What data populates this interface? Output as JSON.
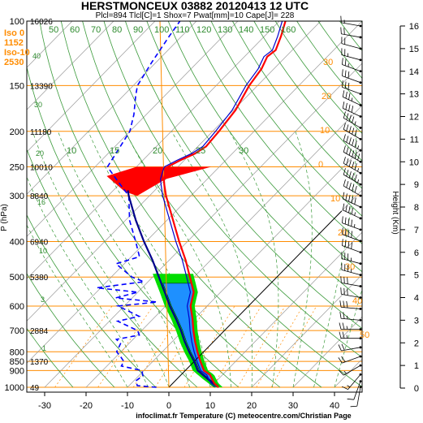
{
  "chart_data": {
    "type": "skew-t log-p sounding",
    "title": "HERSTMONCEUX 03882 20120413 12 UTC",
    "subtitle": "Plcl=894 Tlcl[C]=1 Shox=7 Pwat[mm]=10 Cape[J]= 228",
    "credit": "infoclimat.fr Temperature (C) meteocentre.com/Christian Page",
    "ylabel": "P (hPa)",
    "y2label": "Height (Km)",
    "info_box": [
      {
        "label": "Iso 0",
        "value": "1152"
      },
      {
        "label": "Iso-10",
        "value": "2530"
      }
    ],
    "pressure_ticks": [
      100,
      150,
      200,
      250,
      300,
      400,
      500,
      600,
      700,
      800,
      850,
      900,
      1000
    ],
    "temperature_ticks": [
      -30,
      -20,
      -10,
      0,
      10,
      20,
      30,
      40
    ],
    "height_ticks": [
      0,
      1,
      2,
      3,
      4,
      5,
      6,
      7,
      8,
      9,
      10,
      11,
      12,
      13,
      14,
      15,
      16
    ],
    "geopotential_labels": [
      {
        "p": 100,
        "text": "16026"
      },
      {
        "p": 150,
        "text": "13390"
      },
      {
        "p": 200,
        "text": "11180"
      },
      {
        "p": 250,
        "text": "10010"
      },
      {
        "p": 300,
        "text": "8840"
      },
      {
        "p": 400,
        "text": "6940"
      },
      {
        "p": 500,
        "text": "5380"
      },
      {
        "p": 700,
        "text": "2884"
      },
      {
        "p": 850,
        "text": "1370"
      },
      {
        "p": 1000,
        "text": "49"
      }
    ],
    "mixing_ratio_labels": [
      "40",
      "30",
      "20",
      "16",
      "10",
      "3",
      "1"
    ],
    "theta_w_labels": [
      "10",
      "15",
      "20",
      "25",
      "30"
    ],
    "theta_labels": [
      "50",
      "60",
      "70",
      "80",
      "90",
      "100",
      "110",
      "120",
      "130",
      "140",
      "150",
      "160"
    ],
    "theta_e_labels": [
      "30",
      "20",
      "10",
      "0",
      "10",
      "20",
      "30",
      "40",
      "50"
    ],
    "series": [
      {
        "name": "Temperature",
        "color": "#ff0000",
        "points": [
          [
            1000,
            12
          ],
          [
            975,
            10
          ],
          [
            950,
            8.5
          ],
          [
            925,
            7
          ],
          [
            900,
            4.5
          ],
          [
            850,
            1.5
          ],
          [
            800,
            -1.5
          ],
          [
            750,
            -4.5
          ],
          [
            700,
            -7.5
          ],
          [
            650,
            -10.5
          ],
          [
            600,
            -14
          ],
          [
            550,
            -16.5
          ],
          [
            500,
            -21
          ],
          [
            450,
            -26
          ],
          [
            400,
            -32
          ],
          [
            350,
            -38.5
          ],
          [
            300,
            -46
          ],
          [
            280,
            -49
          ],
          [
            270,
            -50.5
          ],
          [
            260,
            -51.5
          ],
          [
            250,
            -52.5
          ],
          [
            240,
            -51
          ],
          [
            230,
            -49
          ],
          [
            220,
            -48
          ],
          [
            200,
            -48.5
          ],
          [
            175,
            -49.5
          ],
          [
            150,
            -52
          ],
          [
            135,
            -53
          ],
          [
            125,
            -54.5
          ],
          [
            120,
            -54
          ],
          [
            110,
            -56
          ],
          [
            100,
            -58.5
          ]
        ]
      },
      {
        "name": "Parcel",
        "color": "#00008b",
        "points": [
          [
            1000,
            12
          ],
          [
            950,
            7.5
          ],
          [
            900,
            3
          ],
          [
            850,
            0
          ],
          [
            800,
            -3.5
          ],
          [
            750,
            -7
          ],
          [
            700,
            -10.5
          ],
          [
            650,
            -14.5
          ],
          [
            600,
            -19
          ],
          [
            550,
            -23.5
          ],
          [
            500,
            -28.5
          ],
          [
            450,
            -34
          ],
          [
            400,
            -40.5
          ],
          [
            350,
            -47.5
          ],
          [
            300,
            -55
          ],
          [
            290,
            -56.5
          ]
        ]
      },
      {
        "name": "Dew point",
        "color": "#0000ff",
        "points": [
          [
            1000,
            -3
          ],
          [
            990,
            -8
          ],
          [
            960,
            -9.5
          ],
          [
            930,
            -9
          ],
          [
            900,
            -10.5
          ],
          [
            875,
            -16.5
          ],
          [
            850,
            -17
          ],
          [
            830,
            -18.5
          ],
          [
            800,
            -21
          ],
          [
            760,
            -22
          ],
          [
            740,
            -24
          ],
          [
            720,
            -19.5
          ],
          [
            700,
            -21
          ],
          [
            660,
            -28
          ],
          [
            640,
            -24
          ],
          [
            600,
            -31.5
          ],
          [
            585,
            -23
          ],
          [
            570,
            -34
          ],
          [
            550,
            -30
          ],
          [
            535,
            -41
          ],
          [
            515,
            -31
          ],
          [
            500,
            -35
          ],
          [
            460,
            -42
          ],
          [
            440,
            -38
          ],
          [
            400,
            -42.5
          ],
          [
            350,
            -49
          ],
          [
            300,
            -55
          ],
          [
            270,
            -62
          ],
          [
            250,
            -67
          ],
          [
            200,
            -70
          ],
          [
            180,
            -73
          ],
          [
            160,
            -77
          ],
          [
            150,
            -79
          ],
          [
            130,
            -81
          ],
          [
            110,
            -83
          ],
          [
            100,
            -84
          ]
        ]
      }
    ],
    "areas": [
      {
        "name": "CAPE",
        "color": "#1e90ff"
      },
      {
        "name": "CIN",
        "color": "#00dd00"
      },
      {
        "name": "Tropopause",
        "color": "#ff0000"
      }
    ],
    "wind_profile": [
      {
        "h": 0.05,
        "dir": 190,
        "spd": 10
      },
      {
        "h": 0.3,
        "dir": 200,
        "spd": 10
      },
      {
        "h": 0.6,
        "dir": 220,
        "spd": 15
      },
      {
        "h": 1.0,
        "dir": 240,
        "spd": 15
      },
      {
        "h": 1.4,
        "dir": 250,
        "spd": 20
      },
      {
        "h": 1.8,
        "dir": 260,
        "spd": 20
      },
      {
        "h": 2.2,
        "dir": 270,
        "spd": 25
      },
      {
        "h": 2.6,
        "dir": 270,
        "spd": 25
      },
      {
        "h": 3.0,
        "dir": 275,
        "spd": 25
      },
      {
        "h": 3.5,
        "dir": 275,
        "spd": 30
      },
      {
        "h": 4.0,
        "dir": 280,
        "spd": 30
      },
      {
        "h": 4.5,
        "dir": 280,
        "spd": 30
      },
      {
        "h": 5.0,
        "dir": 285,
        "spd": 35
      },
      {
        "h": 5.5,
        "dir": 285,
        "spd": 35
      },
      {
        "h": 6.0,
        "dir": 290,
        "spd": 40
      },
      {
        "h": 6.5,
        "dir": 290,
        "spd": 40
      },
      {
        "h": 7.0,
        "dir": 290,
        "spd": 45
      },
      {
        "h": 7.5,
        "dir": 295,
        "spd": 45
      },
      {
        "h": 8.0,
        "dir": 295,
        "spd": 50
      },
      {
        "h": 8.5,
        "dir": 300,
        "spd": 50
      },
      {
        "h": 9.0,
        "dir": 300,
        "spd": 55
      },
      {
        "h": 9.5,
        "dir": 300,
        "spd": 55
      },
      {
        "h": 10.0,
        "dir": 300,
        "spd": 60
      },
      {
        "h": 10.5,
        "dir": 300,
        "spd": 55
      },
      {
        "h": 11.0,
        "dir": 300,
        "spd": 50
      },
      {
        "h": 11.5,
        "dir": 300,
        "spd": 45
      },
      {
        "h": 12.0,
        "dir": 295,
        "spd": 40
      },
      {
        "h": 12.5,
        "dir": 295,
        "spd": 35
      },
      {
        "h": 13.0,
        "dir": 290,
        "spd": 30
      },
      {
        "h": 13.5,
        "dir": 290,
        "spd": 30
      },
      {
        "h": 14.0,
        "dir": 290,
        "spd": 25
      },
      {
        "h": 14.5,
        "dir": 285,
        "spd": 25
      },
      {
        "h": 15.0,
        "dir": 285,
        "spd": 20
      },
      {
        "h": 15.5,
        "dir": 280,
        "spd": 20
      },
      {
        "h": 16.0,
        "dir": 280,
        "spd": 15
      }
    ]
  }
}
